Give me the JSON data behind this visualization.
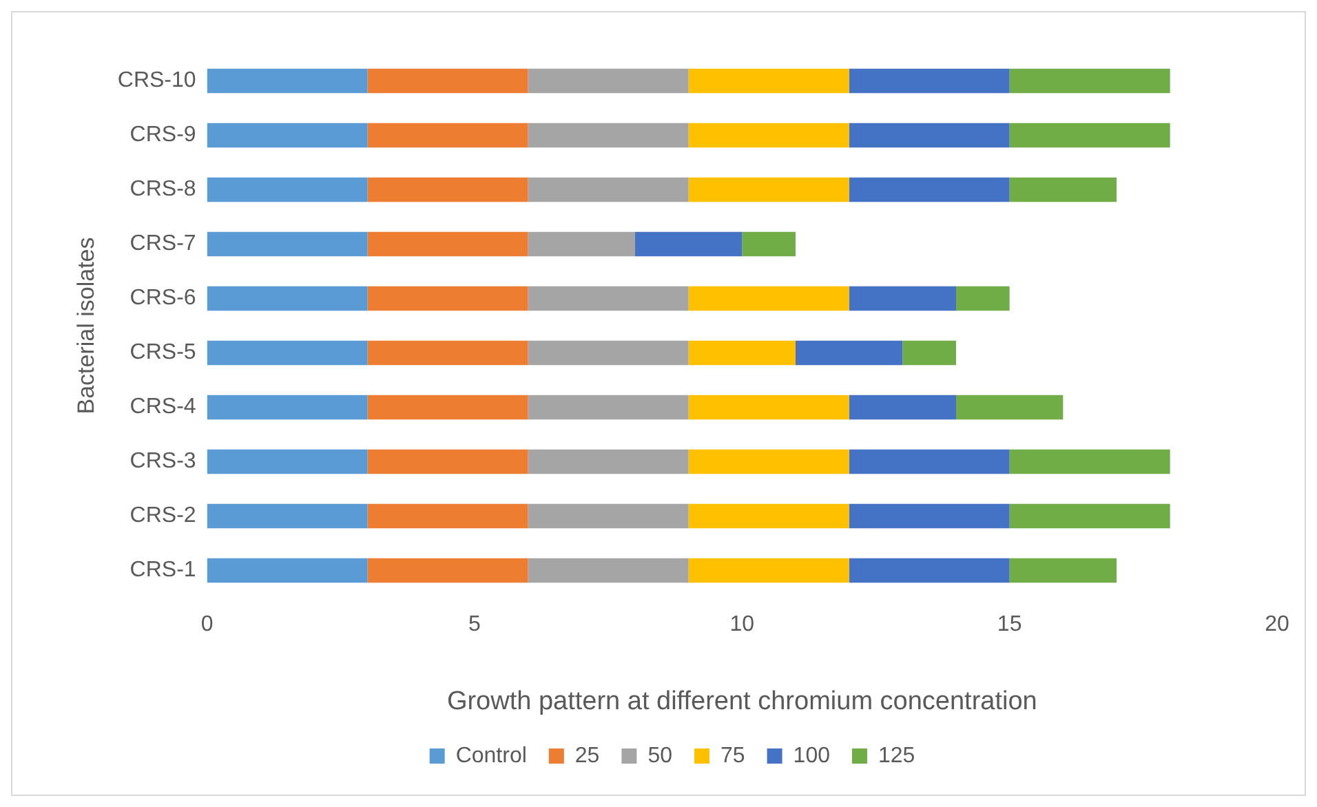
{
  "chart_data": {
    "type": "bar",
    "orientation": "horizontal",
    "stacked": true,
    "xlabel": "Growth pattern at different chromium concentration",
    "ylabel": "Bacterial isolates",
    "categories": [
      "CRS-10",
      "CRS-9",
      "CRS-8",
      "CRS-7",
      "CRS-6",
      "CRS-5",
      "CRS-4",
      "CRS-3",
      "CRS-2",
      "CRS-1"
    ],
    "series": [
      {
        "name": "Control",
        "color": "#5b9bd5",
        "values": [
          3,
          3,
          3,
          3,
          3,
          3,
          3,
          3,
          3,
          3
        ]
      },
      {
        "name": "25",
        "color": "#ed7d31",
        "values": [
          3,
          3,
          3,
          3,
          3,
          3,
          3,
          3,
          3,
          3
        ]
      },
      {
        "name": "50",
        "color": "#a5a5a5",
        "values": [
          3,
          3,
          3,
          2,
          3,
          3,
          3,
          3,
          3,
          3
        ]
      },
      {
        "name": "75",
        "color": "#ffc000",
        "values": [
          3,
          3,
          3,
          0,
          3,
          2,
          3,
          3,
          3,
          3
        ]
      },
      {
        "name": "100",
        "color": "#4472c4",
        "values": [
          3,
          3,
          3,
          2,
          2,
          2,
          2,
          3,
          3,
          3
        ]
      },
      {
        "name": "125",
        "color": "#70ad47",
        "values": [
          3,
          3,
          2,
          1,
          1,
          1,
          2,
          3,
          3,
          2
        ]
      }
    ],
    "xlim": [
      0,
      20
    ],
    "xticks": [
      0,
      5,
      10,
      15,
      20
    ],
    "grid": false,
    "legend": "bottom"
  }
}
